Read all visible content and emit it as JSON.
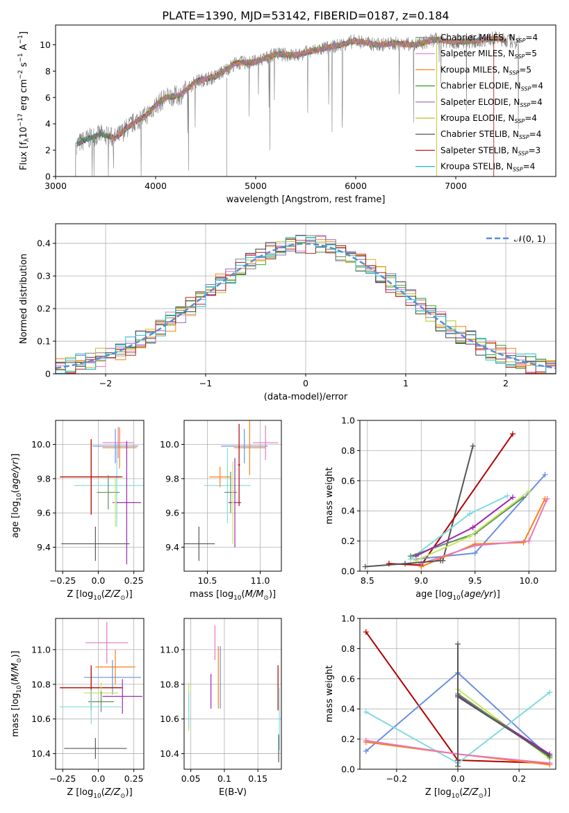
{
  "title": "PLATE=1390, MJD=53142, FIBERID=0187, z=0.184",
  "colors": {
    "c0": "#7f7f7f",
    "c1": "#e377c2",
    "c2": "#ff7f0e",
    "c3": "#2ca02c",
    "c4": "#9467bd",
    "c5": "#bcbd22",
    "c6": "#404040",
    "c7": "#b22222",
    "c8": "#17becf",
    "gaussian": "#5b8bd6",
    "blue": "#6a8fe0",
    "cyan": "#7fdbe0",
    "green": "#5f8f5f",
    "gray": "#555555",
    "darkred": "#b00000",
    "lime": "#c6e55a",
    "purple": "#9c27b0"
  },
  "chart_data": [
    {
      "id": "spectrum",
      "type": "line",
      "xlabel": "wavelength [Angstrom, rest frame]",
      "ylabel": "Flux [f",
      "xlim": [
        3000,
        8000
      ],
      "ylim": [
        0,
        11.5
      ],
      "xticks": [
        3000,
        4000,
        5000,
        6000,
        7000
      ],
      "yticks": [
        0,
        2,
        4,
        6,
        8,
        10
      ],
      "grid": false,
      "legend_position": "top-right",
      "spectrum_shape": {
        "x": [
          3200,
          3300,
          3450,
          3600,
          3700,
          3800,
          3900,
          4000,
          4100,
          4250,
          4400,
          4600,
          4800,
          5000,
          5200,
          5400,
          5600,
          5800,
          6000,
          6200,
          6400,
          6600,
          6800,
          7000,
          7200,
          7400,
          7600
        ],
        "y": [
          2.4,
          2.8,
          3.2,
          2.9,
          3.6,
          4.2,
          4.6,
          5.4,
          6.0,
          6.2,
          7.2,
          7.6,
          8.6,
          8.7,
          9.3,
          9.2,
          9.6,
          9.9,
          10.3,
          10.0,
          10.1,
          10.0,
          10.4,
          10.2,
          10.3,
          10.5,
          10.2
        ]
      },
      "series": [
        {
          "name": "Chabrier MILES, N",
          "nssp": "4",
          "color": "c0"
        },
        {
          "name": "Salpeter MILES, N",
          "nssp": "5",
          "color": "c1"
        },
        {
          "name": "Kroupa MILES, N",
          "nssp": "5",
          "color": "c2"
        },
        {
          "name": "Chabrier ELODIE, N",
          "nssp": "4",
          "color": "c3"
        },
        {
          "name": "Salpeter ELODIE, N",
          "nssp": "4",
          "color": "c4"
        },
        {
          "name": "Kroupa ELODIE, N",
          "nssp": "4",
          "color": "c5"
        },
        {
          "name": "Chabrier STELIB, N",
          "nssp": "4",
          "color": "c6"
        },
        {
          "name": "Salpeter STELIB, N",
          "nssp": "3",
          "color": "c7"
        },
        {
          "name": "Kroupa STELIB, N",
          "nssp": "4",
          "color": "c8"
        }
      ]
    },
    {
      "id": "residuals",
      "type": "line",
      "xlabel": "(data-model)/error",
      "ylabel": "Normed distribution",
      "xlim": [
        -2.5,
        2.5
      ],
      "ylim": [
        0,
        0.46
      ],
      "xticks": [
        -2,
        -1,
        0,
        1,
        2
      ],
      "yticks": [
        0.0,
        0.1,
        0.2,
        0.3,
        0.4
      ],
      "grid": true,
      "legend": "𝒩(0, 1)",
      "legend_position": "top-right",
      "bin_width": 0.1
    },
    {
      "id": "age-vs-Z",
      "type": "scatter",
      "xlabel": "Z [log",
      "ylabel": "age  [log",
      "xlim": [
        -0.3,
        0.32
      ],
      "ylim": [
        9.26,
        10.14
      ],
      "xticks": [
        -0.25,
        0.0,
        0.25
      ],
      "yticks": [
        9.4,
        9.6,
        9.8,
        10.0
      ],
      "grid": true,
      "points": [
        {
          "x": 0.14,
          "y": 10.01,
          "xerr": 0.11,
          "yerr": 0.09,
          "color": "c1"
        },
        {
          "x": 0.15,
          "y": 9.98,
          "xerr": 0.12,
          "yerr": 0.12,
          "color": "c2"
        },
        {
          "x": 0.12,
          "y": 9.99,
          "xerr": 0.16,
          "yerr": 0.1,
          "color": "blue"
        },
        {
          "x": 0.13,
          "y": 9.76,
          "xerr": 0.3,
          "yerr": 0.24,
          "color": "cyan"
        },
        {
          "x": -0.05,
          "y": 9.81,
          "xerr": 0.2,
          "yerr": 0.22,
          "color": "c2"
        },
        {
          "x": -0.05,
          "y": 9.81,
          "xerr": 0.22,
          "yerr": 0.22,
          "color": "darkred"
        },
        {
          "x": 0.07,
          "y": 9.72,
          "xerr": 0.08,
          "yerr": 0.1,
          "color": "green"
        },
        {
          "x": 0.2,
          "y": 9.66,
          "xerr": 0.1,
          "yerr": 0.36,
          "color": "purple"
        },
        {
          "x": 0.12,
          "y": 9.66,
          "xerr": 0.01,
          "yerr": 0.14,
          "color": "lime"
        },
        {
          "x": -0.02,
          "y": 9.42,
          "xerr": 0.24,
          "yerr": 0.1,
          "color": "gray"
        }
      ]
    },
    {
      "id": "age-vs-mass",
      "type": "scatter",
      "xlabel": "mass [log",
      "ylabel": "",
      "xlim": [
        10.28,
        11.2
      ],
      "ylim": [
        9.26,
        10.14
      ],
      "xticks": [
        10.5,
        11.0
      ],
      "yticks": [
        9.4,
        9.6,
        9.8,
        10.0
      ],
      "grid": true,
      "points": [
        {
          "x": 11.05,
          "y": 10.01,
          "xerr": 0.12,
          "yerr": 0.1,
          "color": "c1"
        },
        {
          "x": 10.9,
          "y": 9.98,
          "xerr": 0.15,
          "yerr": 0.16,
          "color": "c2"
        },
        {
          "x": 10.85,
          "y": 9.99,
          "xerr": 0.22,
          "yerr": 0.1,
          "color": "blue"
        },
        {
          "x": 10.69,
          "y": 9.76,
          "xerr": 0.22,
          "yerr": 0.22,
          "color": "cyan"
        },
        {
          "x": 10.62,
          "y": 9.81,
          "xerr": 0.1,
          "yerr": 0.06,
          "color": "c2"
        },
        {
          "x": 10.72,
          "y": 9.72,
          "xerr": 0.06,
          "yerr": 0.12,
          "color": "green"
        },
        {
          "x": 10.76,
          "y": 9.66,
          "xerr": 0.06,
          "yerr": 0.26,
          "color": "purple"
        },
        {
          "x": 10.74,
          "y": 9.66,
          "xerr": 0.01,
          "yerr": 0.24,
          "color": "lime"
        },
        {
          "x": 10.42,
          "y": 9.42,
          "xerr": 0.15,
          "yerr": 0.1,
          "color": "gray"
        },
        {
          "x": 10.8,
          "y": 9.88,
          "xerr": 0.01,
          "yerr": 0.24,
          "color": "darkred"
        }
      ]
    },
    {
      "id": "mass-weight-vs-age",
      "type": "line",
      "xlabel": "age  [log",
      "ylabel": "mass weight",
      "xlim": [
        8.43,
        10.25
      ],
      "ylim": [
        0,
        1.0
      ],
      "xticks": [
        8.5,
        9.0,
        9.5,
        10.0
      ],
      "yticks": [
        0.0,
        0.2,
        0.4,
        0.6,
        0.8,
        1.0
      ],
      "grid": true,
      "series": [
        {
          "color": "gray",
          "x": [
            9.2,
            9.48
          ],
          "y": [
            0.07,
            0.83
          ]
        },
        {
          "color": "darkred",
          "x": [
            8.7,
            9.0,
            9.85
          ],
          "y": [
            0.05,
            0.04,
            0.91
          ]
        },
        {
          "color": "blue",
          "x": [
            8.95,
            9.5,
            10.15
          ],
          "y": [
            0.08,
            0.12,
            0.64
          ]
        },
        {
          "color": "cyan",
          "x": [
            8.9,
            9.45,
            9.8
          ],
          "y": [
            0.08,
            0.38,
            0.5
          ]
        },
        {
          "color": "c2",
          "x": [
            9.0,
            9.5,
            9.95,
            10.15
          ],
          "y": [
            0.03,
            0.18,
            0.19,
            0.48
          ]
        },
        {
          "color": "c1",
          "x": [
            9.0,
            9.5,
            10.0,
            10.17
          ],
          "y": [
            0.05,
            0.17,
            0.2,
            0.48
          ]
        },
        {
          "color": "green",
          "x": [
            8.9,
            9.5,
            9.95
          ],
          "y": [
            0.1,
            0.25,
            0.49
          ]
        },
        {
          "color": "purple",
          "x": [
            8.95,
            9.48,
            9.85
          ],
          "y": [
            0.1,
            0.29,
            0.49
          ]
        },
        {
          "color": "lime",
          "x": [
            8.95,
            9.45,
            10.0
          ],
          "y": [
            0.07,
            0.23,
            0.53
          ]
        },
        {
          "color": "gray",
          "x": [
            8.48,
            8.85,
            9.18
          ],
          "y": [
            0.03,
            0.05,
            0.07
          ]
        }
      ]
    },
    {
      "id": "mass-vs-Z",
      "type": "scatter",
      "xlabel": "Z [log",
      "ylabel": "mass [log",
      "xlim": [
        -0.3,
        0.32
      ],
      "ylim": [
        10.31,
        11.18
      ],
      "xticks": [
        -0.25,
        0.0,
        0.25
      ],
      "yticks": [
        10.4,
        10.6,
        10.8,
        11.0
      ],
      "grid": true,
      "points": [
        {
          "x": 0.06,
          "y": 11.04,
          "xerr": 0.15,
          "yerr": 0.12,
          "color": "c1"
        },
        {
          "x": 0.12,
          "y": 10.9,
          "xerr": 0.14,
          "yerr": 0.1,
          "color": "c2"
        },
        {
          "x": 0.1,
          "y": 10.84,
          "xerr": 0.2,
          "yerr": 0.1,
          "color": "blue"
        },
        {
          "x": -0.05,
          "y": 10.78,
          "xerr": 0.22,
          "yerr": 0.12,
          "color": "c2"
        },
        {
          "x": -0.05,
          "y": 10.78,
          "xerr": 0.22,
          "yerr": 0.13,
          "color": "darkred"
        },
        {
          "x": 0.02,
          "y": 10.75,
          "xerr": 0.12,
          "yerr": 0.06,
          "color": "lime"
        },
        {
          "x": 0.17,
          "y": 10.73,
          "xerr": 0.14,
          "yerr": 0.1,
          "color": "purple"
        },
        {
          "x": 0.02,
          "y": 10.7,
          "xerr": 0.09,
          "yerr": 0.06,
          "color": "green"
        },
        {
          "x": -0.05,
          "y": 10.67,
          "xerr": 0.22,
          "yerr": 0.1,
          "color": "cyan"
        },
        {
          "x": -0.02,
          "y": 10.43,
          "xerr": 0.22,
          "yerr": 0.06,
          "color": "gray"
        }
      ]
    },
    {
      "id": "mass-vs-ebv",
      "type": "scatter",
      "xlabel": "E(B-V)",
      "ylabel": "",
      "xlim": [
        0.04,
        0.185
      ],
      "ylim": [
        10.31,
        11.18
      ],
      "xticks": [
        0.05,
        0.1,
        0.15
      ],
      "yticks": [
        10.4,
        10.6,
        10.8,
        11.0
      ],
      "grid": true,
      "points": [
        {
          "x": 0.086,
          "y": 11.04,
          "yerr": 0.1,
          "color": "c1"
        },
        {
          "x": 0.094,
          "y": 10.84,
          "yerr": 0.18,
          "color": "blue"
        },
        {
          "x": 0.091,
          "y": 10.84,
          "yerr": 0.18,
          "color": "c2"
        },
        {
          "x": 0.08,
          "y": 10.76,
          "yerr": 0.1,
          "color": "purple"
        },
        {
          "x": 0.047,
          "y": 10.67,
          "yerr": 0.14,
          "color": "lime"
        },
        {
          "x": 0.047,
          "y": 10.65,
          "yerr": 0.1,
          "color": "cyan"
        },
        {
          "x": 0.18,
          "y": 10.78,
          "yerr": 0.13,
          "color": "darkred"
        },
        {
          "x": 0.182,
          "y": 10.6,
          "yerr": 0.18,
          "color": "cyan"
        },
        {
          "x": 0.181,
          "y": 10.43,
          "yerr": 0.08,
          "color": "gray"
        }
      ]
    },
    {
      "id": "mass-weight-vs-Z",
      "type": "line",
      "xlabel": "Z [log",
      "ylabel": "mass weight",
      "xlim": [
        -0.32,
        0.32
      ],
      "ylim": [
        0,
        1.0
      ],
      "xticks": [
        -0.2,
        0.0,
        0.2
      ],
      "yticks": [
        0.0,
        0.2,
        0.4,
        0.6,
        0.8,
        1.0
      ],
      "grid": true,
      "series": [
        {
          "color": "darkred",
          "x": [
            -0.3,
            0.0,
            0.3
          ],
          "y": [
            0.91,
            0.06,
            0.04
          ]
        },
        {
          "color": "blue",
          "x": [
            -0.3,
            0.0,
            0.3
          ],
          "y": [
            0.12,
            0.64,
            0.08
          ]
        },
        {
          "color": "cyan",
          "x": [
            -0.3,
            0.0,
            0.3
          ],
          "y": [
            0.38,
            0.04,
            0.51
          ]
        },
        {
          "color": "c2",
          "x": [
            -0.3,
            0.0,
            0.3
          ],
          "y": [
            0.18,
            0.1,
            0.03
          ]
        },
        {
          "color": "c1",
          "x": [
            -0.3,
            0.0,
            0.3
          ],
          "y": [
            0.19,
            0.1,
            0.04
          ]
        },
        {
          "color": "lime",
          "x": [
            0.0,
            0.3
          ],
          "y": [
            0.53,
            0.07
          ]
        },
        {
          "color": "purple",
          "x": [
            0.0,
            0.3
          ],
          "y": [
            0.49,
            0.1
          ]
        },
        {
          "color": "green",
          "x": [
            0.0,
            0.3
          ],
          "y": [
            0.5,
            0.08
          ]
        },
        {
          "color": "gray",
          "x": [
            0.0,
            0.3
          ],
          "y": [
            0.48,
            0.09
          ]
        },
        {
          "color": "gray",
          "x": [
            0.0,
            0.0
          ],
          "y": [
            0.02,
            0.83
          ]
        }
      ]
    }
  ]
}
